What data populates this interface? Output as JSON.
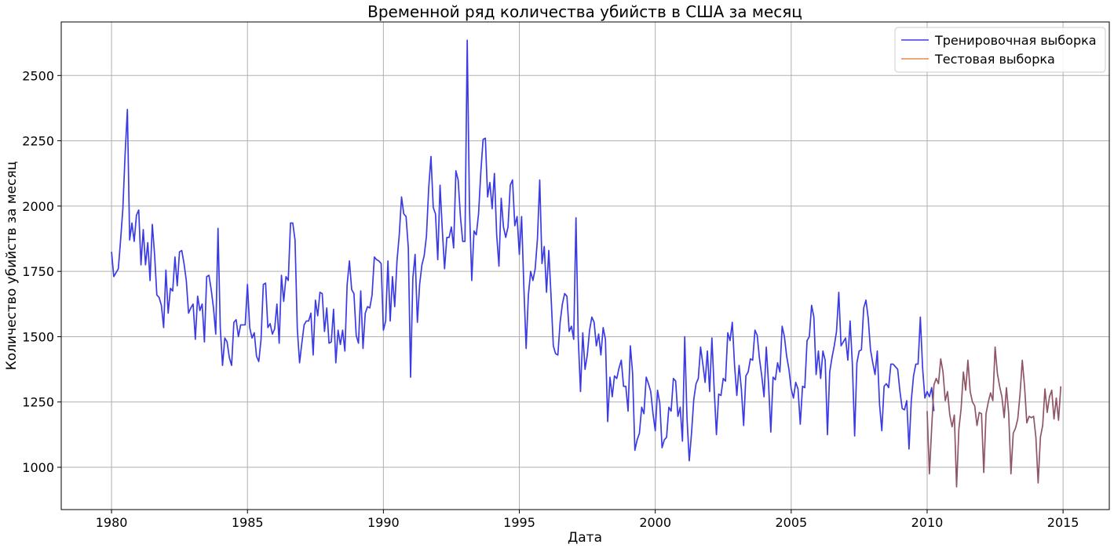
{
  "chart_data": {
    "type": "line",
    "title": "Временной ряд количества убийств в США за месяц",
    "xlabel": "Дата",
    "ylabel": "Количество убийств за месяц",
    "x_start": "1980-01",
    "x_end": "2014-12",
    "x_ticks": [
      "1980",
      "1985",
      "1990",
      "1995",
      "2000",
      "2005",
      "2010",
      "2015"
    ],
    "xlim": [
      1978.15,
      2016.7
    ],
    "y_ticks": [
      1000,
      1250,
      1500,
      1750,
      2000,
      2250,
      2500
    ],
    "ylim": [
      838,
      2705
    ],
    "grid": true,
    "legend_position": "top-right",
    "series": [
      {
        "name": "Тренировочная выборка",
        "color": "#3b3be6",
        "start": "1980-01",
        "values": [
          1825,
          1730,
          1745,
          1760,
          1870,
          1990,
          2200,
          2370,
          1870,
          1935,
          1865,
          1965,
          1985,
          1775,
          1910,
          1775,
          1860,
          1715,
          1930,
          1815,
          1660,
          1650,
          1620,
          1535,
          1755,
          1590,
          1685,
          1675,
          1805,
          1695,
          1825,
          1830,
          1780,
          1715,
          1590,
          1610,
          1625,
          1490,
          1655,
          1600,
          1625,
          1480,
          1730,
          1735,
          1680,
          1610,
          1510,
          1915,
          1535,
          1390,
          1495,
          1480,
          1420,
          1390,
          1555,
          1565,
          1500,
          1545,
          1545,
          1545,
          1700,
          1535,
          1495,
          1515,
          1425,
          1405,
          1490,
          1700,
          1705,
          1535,
          1550,
          1510,
          1530,
          1625,
          1475,
          1735,
          1635,
          1730,
          1715,
          1935,
          1935,
          1870,
          1530,
          1400,
          1475,
          1545,
          1560,
          1560,
          1590,
          1430,
          1640,
          1580,
          1670,
          1665,
          1520,
          1610,
          1475,
          1480,
          1605,
          1400,
          1525,
          1470,
          1525,
          1445,
          1700,
          1790,
          1680,
          1665,
          1505,
          1475,
          1675,
          1455,
          1590,
          1615,
          1610,
          1660,
          1805,
          1795,
          1790,
          1780,
          1525,
          1560,
          1790,
          1560,
          1730,
          1615,
          1790,
          1890,
          2035,
          1970,
          1960,
          1840,
          1345,
          1725,
          1815,
          1555,
          1700,
          1775,
          1810,
          1885,
          2070,
          2190,
          1995,
          1970,
          1795,
          2080,
          1910,
          1760,
          1880,
          1880,
          1920,
          1840,
          2135,
          2100,
          1960,
          1865,
          1865,
          2635,
          1990,
          1715,
          1905,
          1890,
          1970,
          2130,
          2255,
          2260,
          2035,
          2090,
          1990,
          2125,
          1890,
          1770,
          2030,
          1920,
          1880,
          1920,
          2080,
          2100,
          1925,
          1960,
          1815,
          1960,
          1690,
          1455,
          1660,
          1750,
          1715,
          1760,
          1875,
          2100,
          1780,
          1845,
          1670,
          1830,
          1655,
          1465,
          1435,
          1430,
          1555,
          1625,
          1665,
          1655,
          1520,
          1540,
          1490,
          1955,
          1495,
          1290,
          1515,
          1375,
          1430,
          1525,
          1575,
          1555,
          1465,
          1510,
          1430,
          1535,
          1490,
          1175,
          1345,
          1270,
          1350,
          1340,
          1380,
          1410,
          1310,
          1310,
          1215,
          1465,
          1360,
          1065,
          1105,
          1130,
          1230,
          1205,
          1345,
          1320,
          1290,
          1205,
          1140,
          1295,
          1245,
          1075,
          1105,
          1115,
          1230,
          1215,
          1340,
          1330,
          1195,
          1230,
          1100,
          1500,
          1190,
          1025,
          1130,
          1260,
          1320,
          1340,
          1460,
          1395,
          1325,
          1445,
          1290,
          1495,
          1300,
          1125,
          1280,
          1275,
          1340,
          1330,
          1515,
          1485,
          1555,
          1390,
          1275,
          1390,
          1300,
          1160,
          1350,
          1365,
          1415,
          1410,
          1525,
          1505,
          1415,
          1350,
          1270,
          1460,
          1320,
          1135,
          1345,
          1335,
          1400,
          1365,
          1540,
          1500,
          1425,
          1375,
          1300,
          1265,
          1325,
          1300,
          1165,
          1310,
          1305,
          1485,
          1500,
          1620,
          1575,
          1355,
          1445,
          1340,
          1445,
          1410,
          1125,
          1365,
          1420,
          1465,
          1520,
          1670,
          1465,
          1480,
          1495,
          1410,
          1560,
          1395,
          1120,
          1400,
          1445,
          1450,
          1610,
          1640,
          1570,
          1450,
          1400,
          1355,
          1445,
          1240,
          1140,
          1310,
          1320,
          1305,
          1395,
          1395,
          1385,
          1375,
          1290,
          1225,
          1220,
          1255,
          1070,
          1255,
          1350,
          1395,
          1395,
          1575,
          1380,
          1265,
          1290,
          1270,
          1305,
          1215
        ]
      },
      {
        "name": "Тестовая выборка",
        "color": "#e8884f",
        "start": "2010-01",
        "values": [
          1215,
          975,
          1150,
          1315,
          1340,
          1320,
          1415,
          1365,
          1255,
          1290,
          1200,
          1155,
          1200,
          925,
          1145,
          1225,
          1365,
          1295,
          1410,
          1290,
          1250,
          1235,
          1160,
          1210,
          1205,
          980,
          1205,
          1250,
          1285,
          1255,
          1460,
          1360,
          1310,
          1270,
          1190,
          1305,
          1205,
          975,
          1130,
          1150,
          1185,
          1280,
          1410,
          1310,
          1170,
          1195,
          1190,
          1195,
          1115,
          940,
          1115,
          1160,
          1300,
          1210,
          1270,
          1295,
          1185,
          1265,
          1180,
          1310
        ]
      }
    ],
    "overlap_color": "#8f5565"
  }
}
